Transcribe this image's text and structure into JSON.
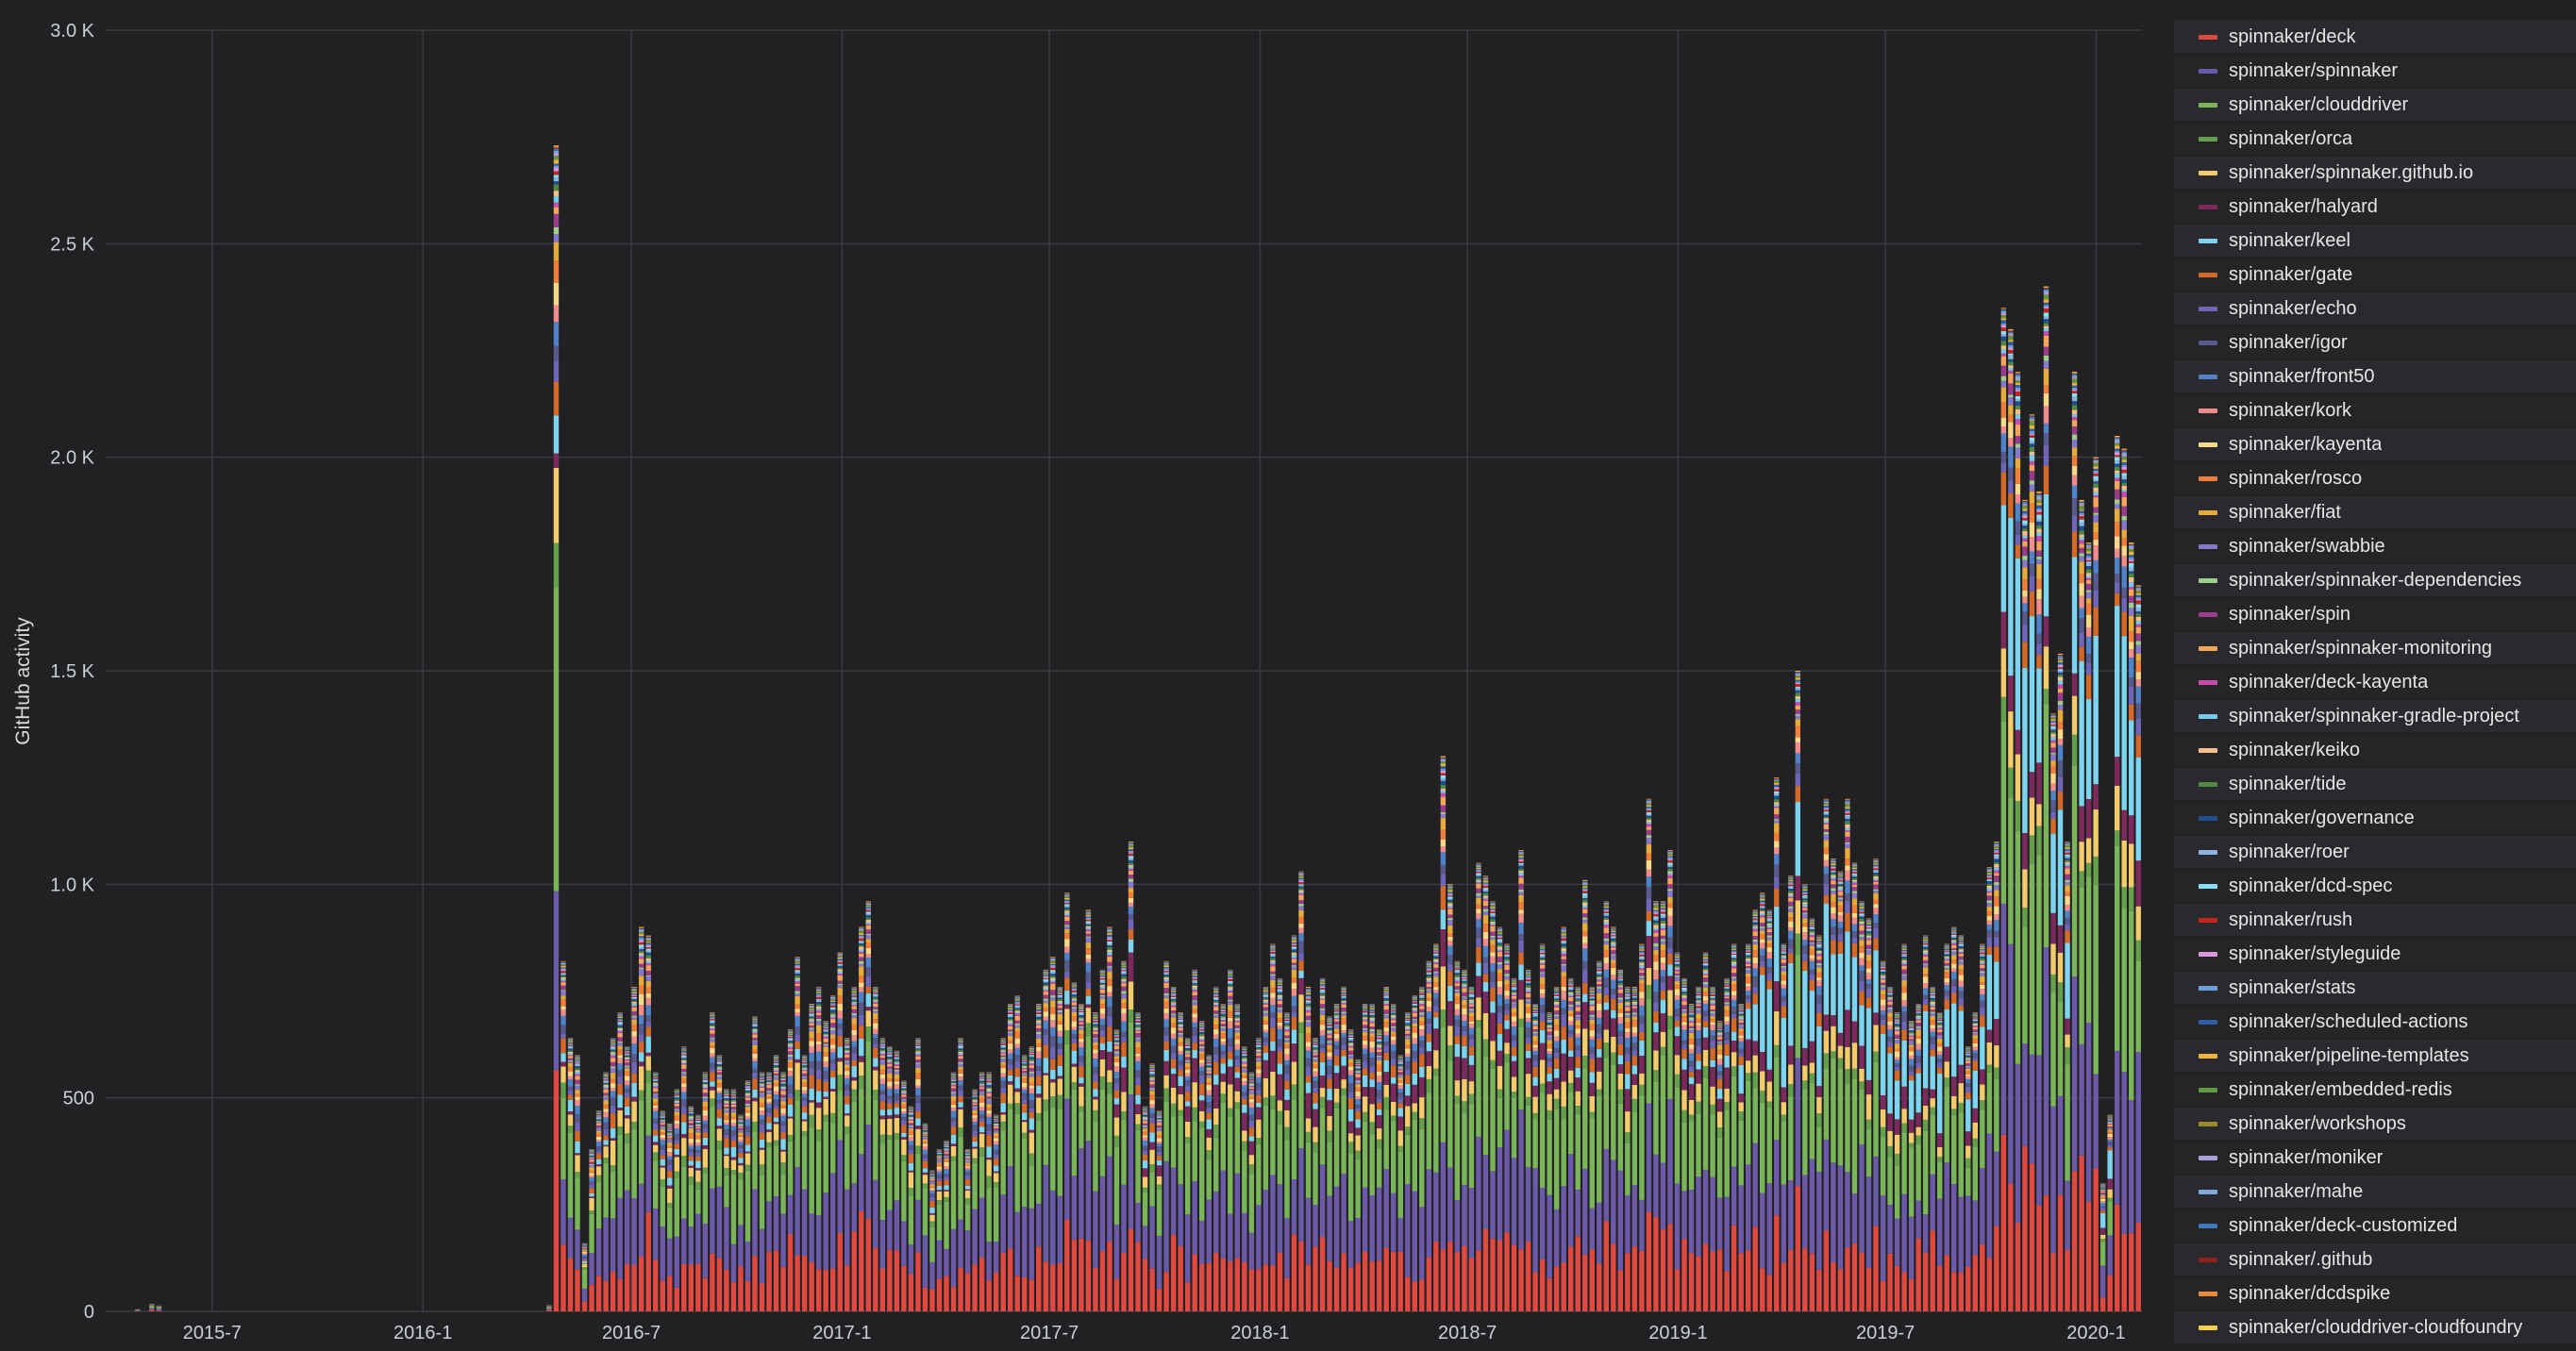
{
  "chart_data": {
    "type": "bar",
    "stacked": true,
    "title": "",
    "xlabel": "",
    "ylabel": "GitHub activity",
    "ylim": [
      0,
      3000
    ],
    "y_ticks": [
      0,
      500,
      1000,
      1500,
      2000,
      2500,
      3000
    ],
    "y_tick_labels": [
      "0",
      "500",
      "1.0 K",
      "1.5 K",
      "2.0 K",
      "2.5 K",
      "3.0 K"
    ],
    "x_tick_labels": [
      "2015-7",
      "2016-1",
      "2016-7",
      "2017-1",
      "2017-7",
      "2018-1",
      "2018-7",
      "2019-1",
      "2019-7",
      "2020-1"
    ],
    "x_granularity": "week",
    "x_range": [
      "2015-03-30",
      "2020-02-10"
    ],
    "grid": true,
    "legend_position": "right",
    "series": [
      {
        "name": "spinnaker/deck",
        "color": "#e0493f",
        "share": 0.18
      },
      {
        "name": "spinnaker/spinnaker",
        "color": "#6b5aa8",
        "share": 0.22
      },
      {
        "name": "spinnaker/clouddriver",
        "color": "#7ab55c",
        "share": 0.22
      },
      {
        "name": "spinnaker/orca",
        "color": "#64a04c",
        "share": 0.03
      },
      {
        "name": "spinnaker/spinnaker.github.io",
        "color": "#f2cc6c",
        "share": 0.05
      },
      {
        "name": "spinnaker/halyard",
        "color": "#7c2a5c",
        "share": 0.05
      },
      {
        "name": "spinnaker/keel",
        "color": "#7ed4ee",
        "share": 0.03
      },
      {
        "name": "spinnaker/gate",
        "color": "#d46a2a",
        "share": 0.03
      },
      {
        "name": "spinnaker/echo",
        "color": "#7066b8",
        "share": 0.02
      },
      {
        "name": "spinnaker/igor",
        "color": "#575a8a",
        "share": 0.02
      },
      {
        "name": "spinnaker/front50",
        "color": "#4f82c6",
        "share": 0.02
      },
      {
        "name": "spinnaker/kork",
        "color": "#f08c8c",
        "share": 0.015
      },
      {
        "name": "spinnaker/kayenta",
        "color": "#f5d88a",
        "share": 0.015
      },
      {
        "name": "spinnaker/rosco",
        "color": "#f07f3c",
        "share": 0.015
      },
      {
        "name": "spinnaker/fiat",
        "color": "#e5ac3c",
        "share": 0.015
      },
      {
        "name": "spinnaker/swabbie",
        "color": "#8878cc",
        "share": 0.01
      },
      {
        "name": "spinnaker/spinnaker-dependencies",
        "color": "#9bd08a",
        "share": 0.005
      },
      {
        "name": "spinnaker/spin",
        "color": "#9a3c8c",
        "share": 0.01
      },
      {
        "name": "spinnaker/spinnaker-monitoring",
        "color": "#f4a55c",
        "share": 0.01
      },
      {
        "name": "spinnaker/deck-kayenta",
        "color": "#c94ab0",
        "share": 0.005
      },
      {
        "name": "spinnaker/spinnaker-gradle-project",
        "color": "#76cce8",
        "share": 0.005
      },
      {
        "name": "spinnaker/keiko",
        "color": "#f6bf8a",
        "share": 0.005
      },
      {
        "name": "spinnaker/tide",
        "color": "#4f8a40",
        "share": 0.005
      },
      {
        "name": "spinnaker/governance",
        "color": "#1f4f8e",
        "share": 0.005
      },
      {
        "name": "spinnaker/roer",
        "color": "#8cb4de",
        "share": 0.004
      },
      {
        "name": "spinnaker/dcd-spec",
        "color": "#86e0f8",
        "share": 0.004
      },
      {
        "name": "spinnaker/rush",
        "color": "#c4261e",
        "share": 0.004
      },
      {
        "name": "spinnaker/styleguide",
        "color": "#de96de",
        "share": 0.003
      },
      {
        "name": "spinnaker/stats",
        "color": "#6a9fda",
        "share": 0.003
      },
      {
        "name": "spinnaker/scheduled-actions",
        "color": "#2d5fa6",
        "share": 0.003
      },
      {
        "name": "spinnaker/pipeline-templates",
        "color": "#f0b43e",
        "share": 0.003
      },
      {
        "name": "spinnaker/embedded-redis",
        "color": "#5e9a44",
        "share": 0.003
      },
      {
        "name": "spinnaker/workshops",
        "color": "#9a8a2e",
        "share": 0.002
      },
      {
        "name": "spinnaker/moniker",
        "color": "#aaa0e0",
        "share": 0.002
      },
      {
        "name": "spinnaker/mahe",
        "color": "#7fa8d8",
        "share": 0.002
      },
      {
        "name": "spinnaker/deck-customized",
        "color": "#3f78c0",
        "share": 0.002
      },
      {
        "name": "spinnaker/.github",
        "color": "#8e1f1a",
        "share": 0.001
      },
      {
        "name": "spinnaker/dcdspike",
        "color": "#ee8a3a",
        "share": 0.001
      },
      {
        "name": "spinnaker/clouddriver-cloudfoundry",
        "color": "#f4d04a",
        "share": 0.001
      }
    ],
    "totals_by_week": [
      0,
      0,
      0,
      0,
      5,
      0,
      18,
      14,
      0,
      0,
      0,
      0,
      0,
      0,
      0,
      0,
      0,
      0,
      0,
      0,
      0,
      0,
      0,
      0,
      0,
      0,
      0,
      0,
      0,
      0,
      0,
      0,
      0,
      0,
      0,
      0,
      0,
      0,
      0,
      0,
      0,
      0,
      0,
      0,
      0,
      0,
      0,
      0,
      0,
      0,
      0,
      0,
      0,
      0,
      0,
      0,
      0,
      0,
      0,
      0,
      0,
      0,
      15,
      2730,
      820,
      640,
      600,
      160,
      380,
      470,
      560,
      640,
      700,
      620,
      760,
      900,
      880,
      560,
      470,
      440,
      520,
      620,
      480,
      460,
      560,
      700,
      600,
      520,
      520,
      460,
      540,
      690,
      560,
      560,
      600,
      560,
      660,
      830,
      600,
      720,
      760,
      680,
      740,
      840,
      640,
      760,
      900,
      960,
      760,
      640,
      620,
      610,
      540,
      480,
      640,
      440,
      330,
      380,
      400,
      560,
      640,
      380,
      520,
      560,
      560,
      460,
      640,
      720,
      740,
      600,
      620,
      720,
      800,
      830,
      760,
      980,
      770,
      720,
      940,
      700,
      800,
      900,
      660,
      820,
      1100,
      700,
      480,
      580,
      470,
      820,
      760,
      700,
      640,
      800,
      680,
      600,
      760,
      720,
      800,
      720,
      620,
      560,
      640,
      760,
      860,
      780,
      700,
      880,
      1030,
      760,
      640,
      780,
      690,
      720,
      760,
      660,
      590,
      720,
      720,
      660,
      760,
      720,
      600,
      700,
      740,
      760,
      820,
      860,
      1300,
      1000,
      820,
      800,
      760,
      1050,
      1020,
      960,
      900,
      860,
      780,
      1080,
      800,
      720,
      860,
      700,
      760,
      900,
      780,
      760,
      1010,
      760,
      820,
      960,
      900,
      800,
      760,
      760,
      860,
      1200,
      960,
      960,
      1080,
      840,
      780,
      720,
      760,
      840,
      760,
      680,
      780,
      860,
      720,
      860,
      940,
      980,
      940,
      1250,
      860,
      1020,
      1500,
      1000,
      920,
      880,
      1200,
      1060,
      1030,
      1200,
      1050,
      960,
      920,
      1060,
      820,
      760,
      700,
      860,
      680,
      720,
      880,
      760,
      700,
      860,
      900,
      880,
      620,
      700,
      860,
      1040,
      1100,
      2350,
      2300,
      2200,
      1900,
      2100,
      1920,
      2400,
      1400,
      1540,
      1100,
      2200,
      1900,
      1800,
      2000,
      300,
      460,
      2050,
      2020,
      1800,
      1700
    ]
  }
}
